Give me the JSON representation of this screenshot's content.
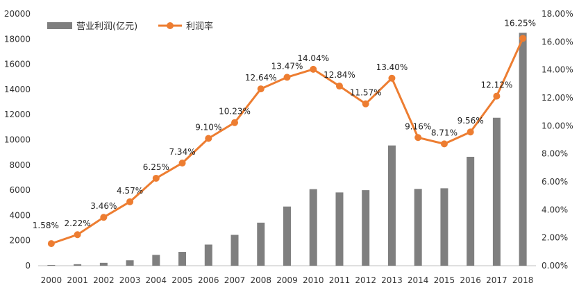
{
  "chart_data": {
    "type": "bar+line",
    "title": "",
    "categories": [
      "2000",
      "2001",
      "2002",
      "2003",
      "2004",
      "2005",
      "2006",
      "2007",
      "2008",
      "2009",
      "2010",
      "2011",
      "2012",
      "2013",
      "2014",
      "2015",
      "2016",
      "2017",
      "2018"
    ],
    "series": [
      {
        "name": "营业利润(亿元)",
        "type": "bar",
        "axis": "left",
        "color": "#7f7f7f",
        "values": [
          60,
          120,
          230,
          430,
          860,
          1100,
          1680,
          2450,
          3420,
          4700,
          6080,
          5820,
          6000,
          9550,
          6100,
          6150,
          8650,
          11750,
          18500
        ]
      },
      {
        "name": "利润率",
        "type": "line",
        "axis": "right",
        "color": "#ed7d31",
        "values": [
          1.58,
          2.22,
          3.46,
          4.57,
          6.25,
          7.34,
          9.1,
          10.23,
          12.64,
          13.47,
          14.04,
          12.84,
          11.57,
          13.4,
          9.16,
          8.71,
          9.56,
          12.12,
          16.25
        ],
        "labels": [
          "1.58%",
          "2.22%",
          "3.46%",
          "4.57%",
          "6.25%",
          "7.34%",
          "9.10%",
          "10.23%",
          "12.64%",
          "13.47%",
          "14.04%",
          "12.84%",
          "11.57%",
          "13.40%",
          "9.16%",
          "8.71%",
          "9.56%",
          "12.12%",
          "16.25%"
        ]
      }
    ],
    "y_left": {
      "min": 0,
      "max": 20000,
      "ticks": [
        "0",
        "2000",
        "4000",
        "6000",
        "8000",
        "10000",
        "12000",
        "14000",
        "16000",
        "18000",
        "20000"
      ]
    },
    "y_right": {
      "min": 0,
      "max": 18,
      "ticks": [
        "0.00%",
        "2.00%",
        "4.00%",
        "6.00%",
        "8.00%",
        "10.00%",
        "12.00%",
        "14.00%",
        "16.00%",
        "18.00%"
      ]
    },
    "legend_position": "top-left",
    "grid": false
  }
}
